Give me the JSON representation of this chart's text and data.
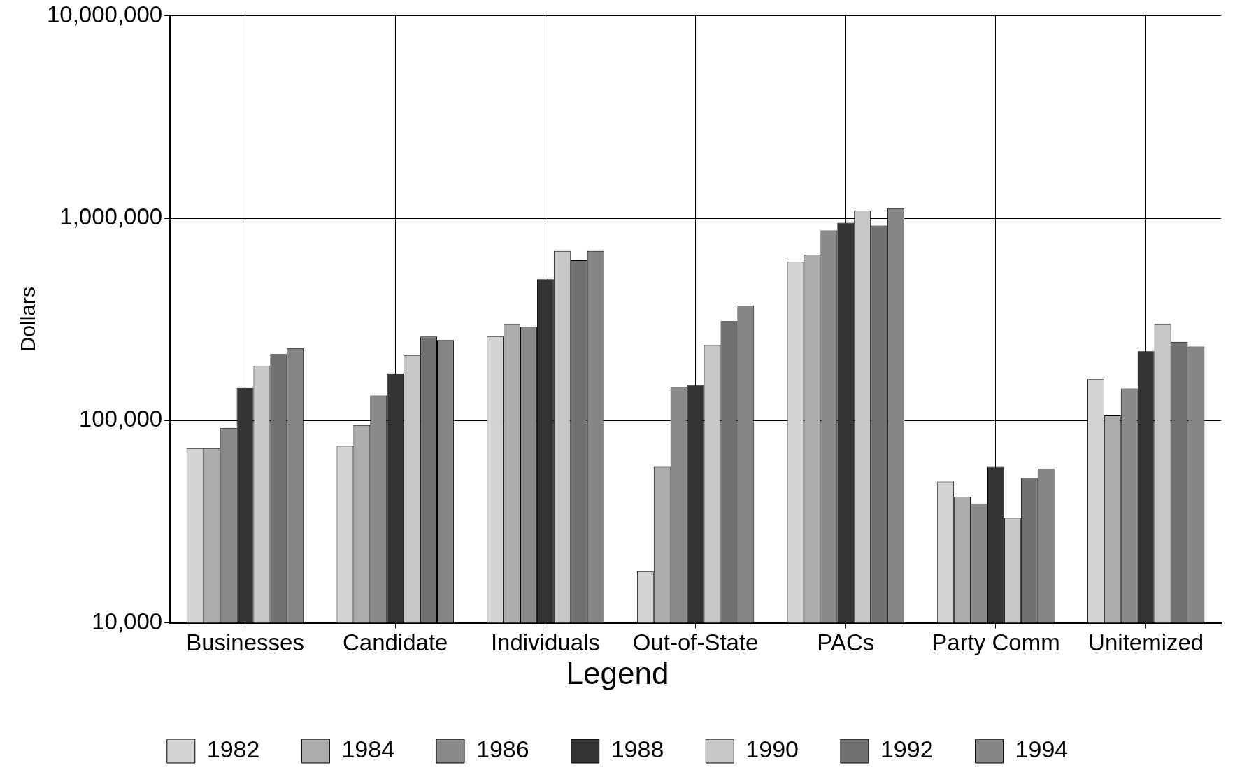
{
  "chart_data": {
    "type": "bar",
    "ylabel": "Dollars",
    "legend_title": "Legend",
    "legend": "bottom",
    "grid": true,
    "log": "y",
    "categories": [
      "Businesses",
      "Candidate",
      "Individuals",
      "Out-of-State",
      "PACs",
      "Party Comm",
      "Unitemized"
    ],
    "ylim": [
      10000,
      10000000
    ],
    "yticks": [
      {
        "value": 10000,
        "label": "10,000"
      },
      {
        "value": 100000,
        "label": "100,000"
      },
      {
        "value": 1000000,
        "label": "1,000,000"
      },
      {
        "value": 10000000,
        "label": "10,000,000"
      }
    ],
    "series": [
      {
        "name": "1982",
        "color": "#d4d4d4",
        "values": [
          73000,
          75000,
          260000,
          18000,
          610000,
          50000,
          160000
        ]
      },
      {
        "name": "1984",
        "color": "#acacac",
        "values": [
          73000,
          95000,
          300000,
          59000,
          660000,
          42000,
          106000
        ]
      },
      {
        "name": "1986",
        "color": "#8a8a8a",
        "values": [
          92000,
          133000,
          290000,
          147000,
          870000,
          39000,
          144000
        ]
      },
      {
        "name": "1988",
        "color": "#333333",
        "values": [
          145000,
          170000,
          500000,
          150000,
          950000,
          59000,
          220000
        ]
      },
      {
        "name": "1990",
        "color": "#c8c8c8",
        "values": [
          186000,
          210000,
          690000,
          236000,
          1090000,
          33000,
          300000
        ]
      },
      {
        "name": "1992",
        "color": "#707070",
        "values": [
          213000,
          260000,
          620000,
          310000,
          920000,
          52000,
          245000
        ]
      },
      {
        "name": "1994",
        "color": "#858585",
        "values": [
          228000,
          250000,
          690000,
          370000,
          1120000,
          58000,
          232000
        ]
      }
    ]
  }
}
